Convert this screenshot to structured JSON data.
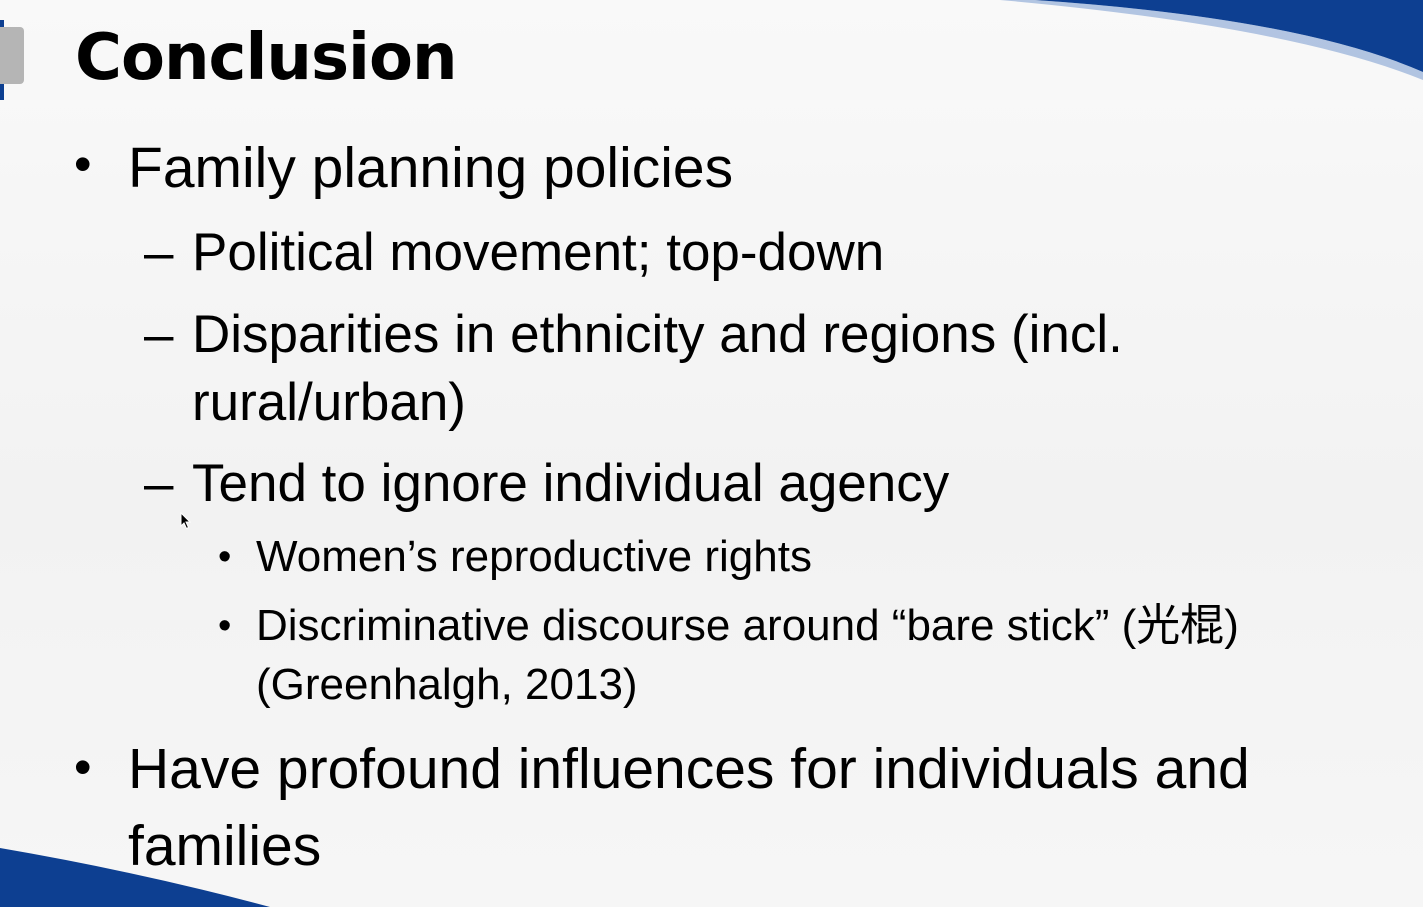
{
  "slide": {
    "title": "Conclusion",
    "bullets": [
      {
        "text": "Family planning policies",
        "subitems": [
          {
            "text": "Political movement; top-down"
          },
          {
            "line1": "Disparities in ethnicity and regions (incl.",
            "line2": "rural/urban)"
          },
          {
            "text": "Tend to ignore individual agency",
            "subitems": [
              {
                "text": "Women’s reproductive rights"
              },
              {
                "line1": "Discriminative discourse around “bare stick” (光棍)",
                "line2": "(Greenhalgh, 2013)"
              }
            ]
          }
        ]
      },
      {
        "line1": "Have profound influences for individuals and",
        "line2": "families"
      }
    ],
    "markers": {
      "bullet": "•",
      "dash": "–"
    }
  },
  "theme": {
    "accent": "#0d3f91",
    "tab_gray": "#b5b5b5",
    "text": "#000000"
  }
}
